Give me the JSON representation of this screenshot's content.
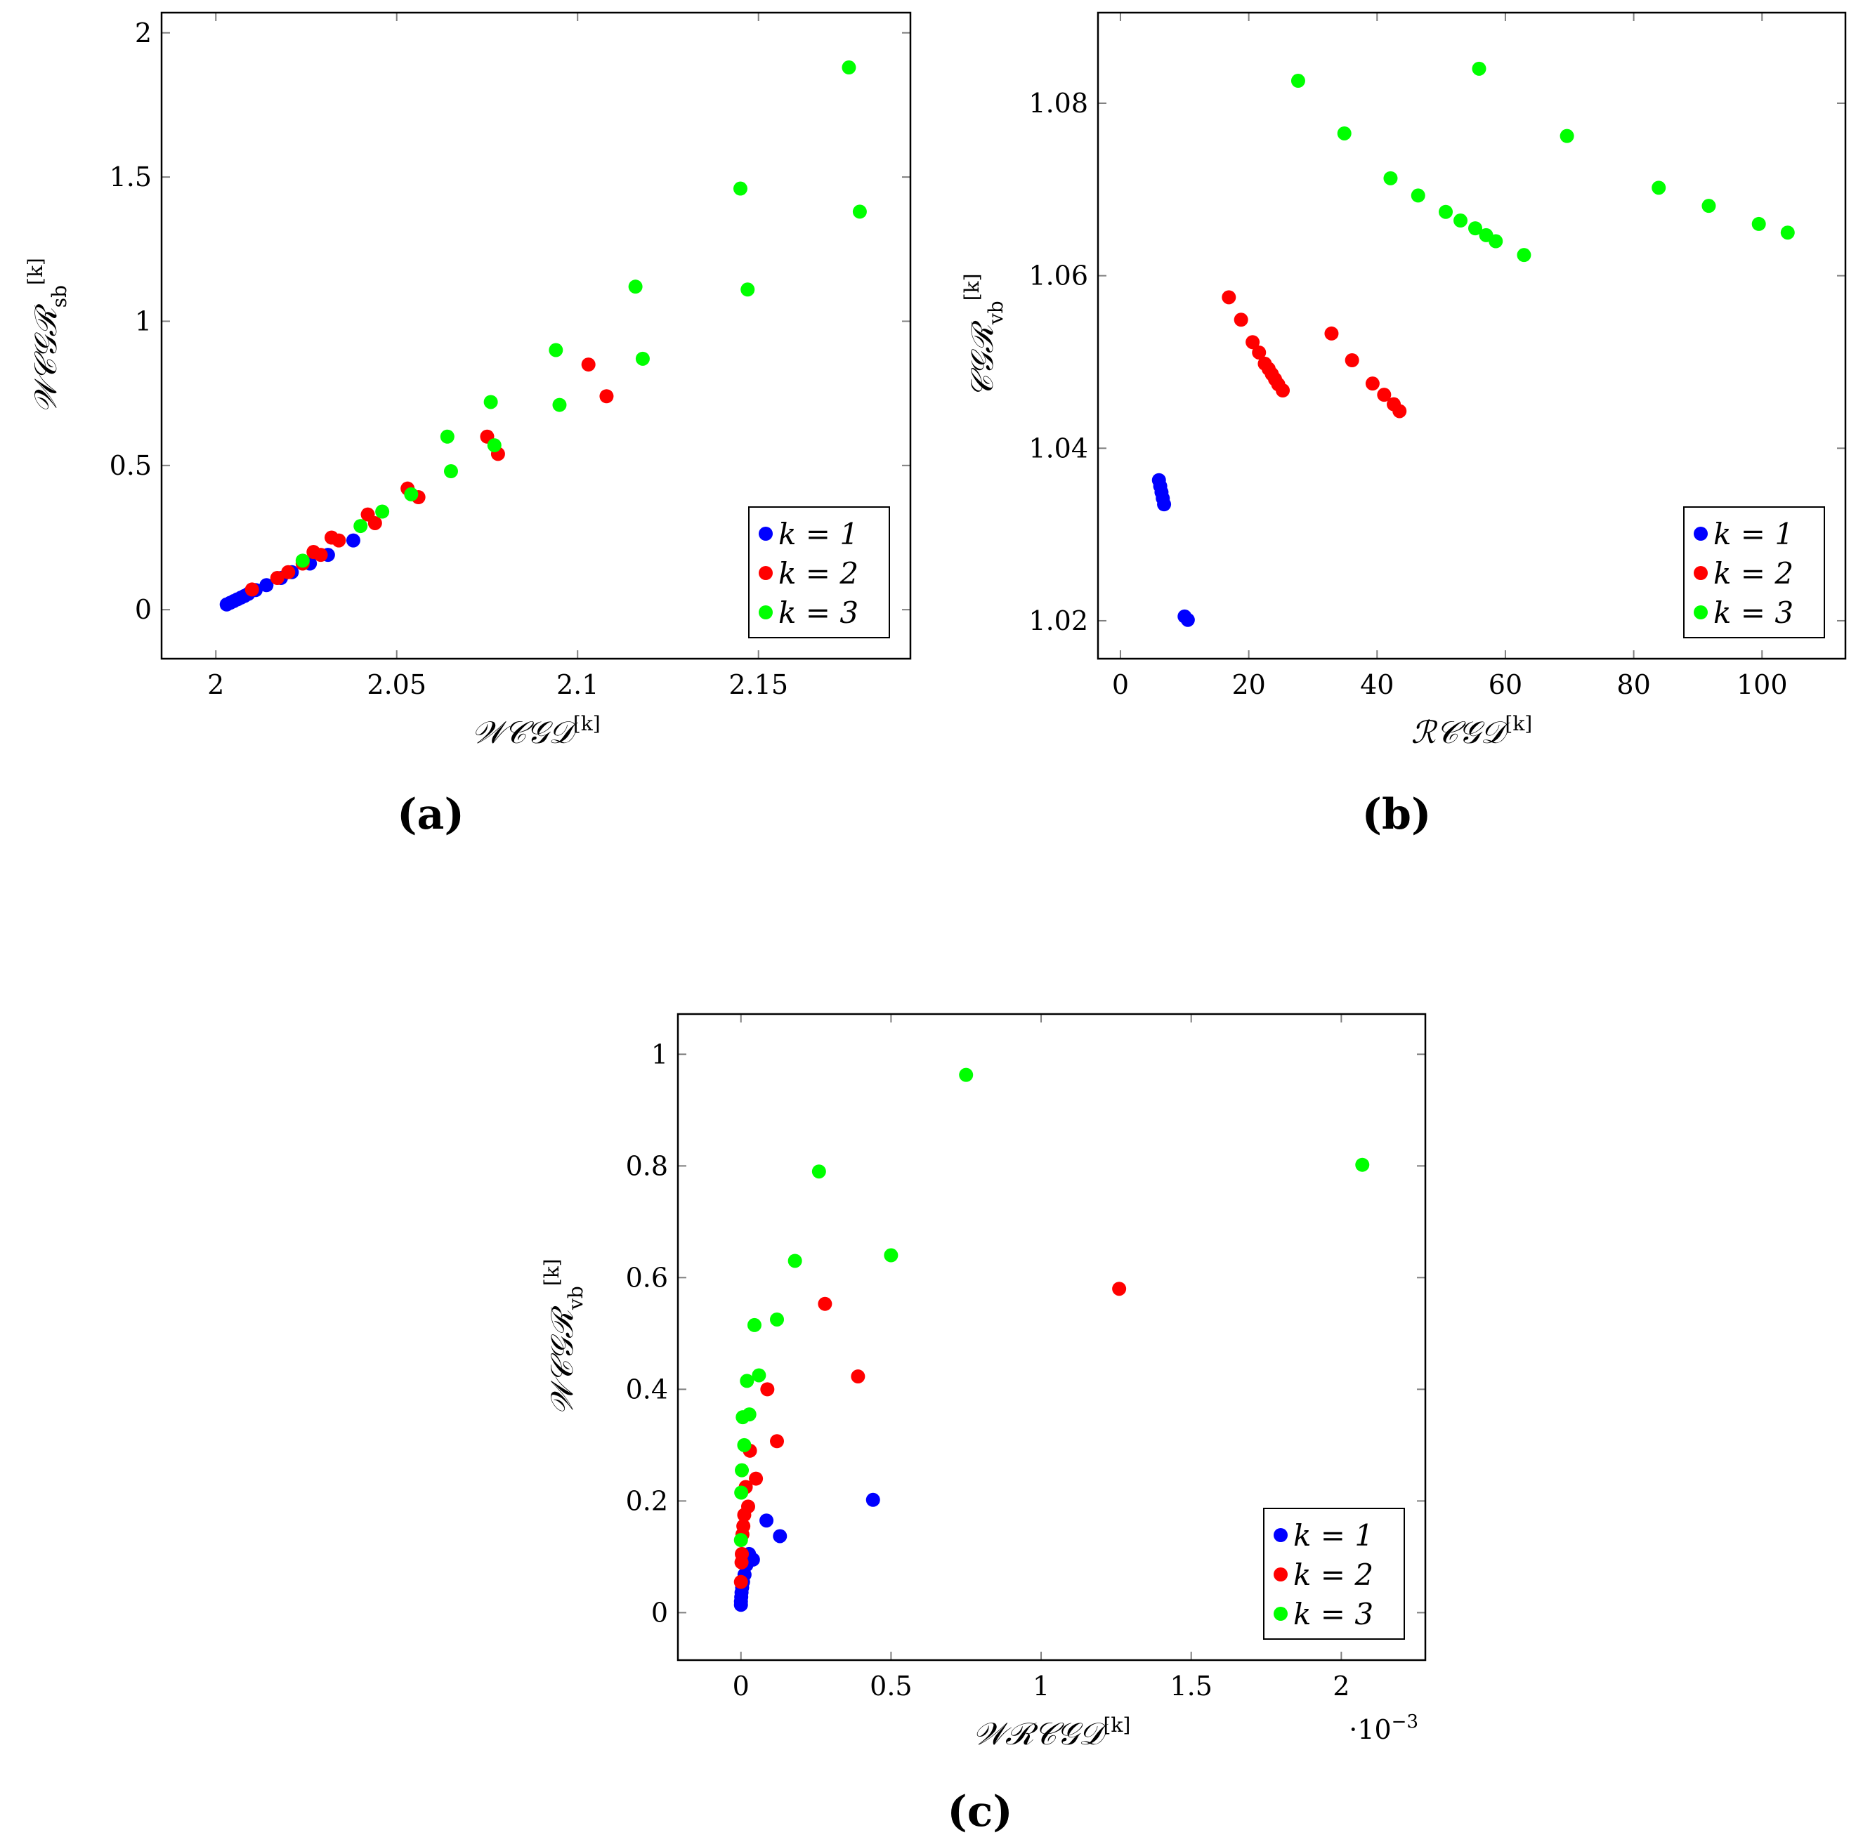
{
  "chart_data": [
    {
      "type": "scatter",
      "panel_label": "(a)",
      "xlabel": "𝒲𝒞𝒢𝒟",
      "xlabel_sup": "[k]",
      "ylabel": "𝒲𝒞𝒢ℛ",
      "ylabel_sub": "sb",
      "ylabel_sup": "[k]",
      "xlim": [
        1.985,
        2.192
      ],
      "ylim": [
        -0.17,
        2.07
      ],
      "xticks": [
        2,
        2.05,
        2.1,
        2.15
      ],
      "xtick_labels": [
        "2",
        "2.05",
        "2.1",
        "2.15"
      ],
      "yticks": [
        0,
        0.5,
        1,
        1.5,
        2
      ],
      "ytick_labels": [
        "0",
        "0.5",
        "1",
        "1.5",
        "2"
      ],
      "legend_position": "bottom-right",
      "series": [
        {
          "name": "k = 1",
          "color": "#0000ff",
          "x": [
            2.003,
            2.004,
            2.005,
            2.006,
            2.007,
            2.008,
            2.009,
            2.011,
            2.014,
            2.018,
            2.021,
            2.026,
            2.031,
            2.038
          ],
          "y": [
            0.018,
            0.024,
            0.03,
            0.036,
            0.042,
            0.048,
            0.055,
            0.068,
            0.085,
            0.11,
            0.13,
            0.16,
            0.19,
            0.24
          ]
        },
        {
          "name": "k = 2",
          "color": "#ff0000",
          "x": [
            2.01,
            2.017,
            2.02,
            2.024,
            2.027,
            2.029,
            2.032,
            2.034,
            2.042,
            2.044,
            2.053,
            2.056,
            2.075,
            2.078,
            2.103,
            2.108
          ],
          "y": [
            0.07,
            0.11,
            0.13,
            0.16,
            0.2,
            0.19,
            0.25,
            0.24,
            0.33,
            0.3,
            0.42,
            0.39,
            0.6,
            0.54,
            0.85,
            0.74
          ]
        },
        {
          "name": "k = 3",
          "color": "#00ff00",
          "x": [
            2.024,
            2.04,
            2.046,
            2.054,
            2.064,
            2.065,
            2.076,
            2.077,
            2.094,
            2.095,
            2.116,
            2.118,
            2.145,
            2.147,
            2.175,
            2.178
          ],
          "y": [
            0.17,
            0.29,
            0.34,
            0.4,
            0.6,
            0.48,
            0.72,
            0.57,
            0.9,
            0.71,
            1.12,
            0.87,
            1.46,
            1.11,
            1.88,
            1.38
          ]
        }
      ]
    },
    {
      "type": "scatter",
      "panel_label": "(b)",
      "xlabel": "ℛ𝒞𝒢𝒟",
      "xlabel_sup": "[k]",
      "ylabel": "𝒞𝒢ℛ",
      "ylabel_sub": "vb",
      "ylabel_sup": "[k]",
      "xlim": [
        -3.5,
        113
      ],
      "ylim": [
        1.0156,
        1.0905
      ],
      "xticks": [
        0,
        20,
        40,
        60,
        80,
        100
      ],
      "xtick_labels": [
        "0",
        "20",
        "40",
        "60",
        "80",
        "100"
      ],
      "yticks": [
        1.02,
        1.04,
        1.06,
        1.08
      ],
      "ytick_labels": [
        "1.02",
        "1.04",
        "1.06",
        "1.08"
      ],
      "legend_position": "bottom-right",
      "series": [
        {
          "name": "k = 1",
          "color": "#0000ff",
          "x": [
            6.0,
            6.2,
            6.4,
            6.6,
            6.8,
            10.0,
            10.5
          ],
          "y": [
            1.0363,
            1.0356,
            1.0349,
            1.0342,
            1.0335,
            1.0205,
            1.0201
          ]
        },
        {
          "name": "k = 2",
          "color": "#ff0000",
          "x": [
            16.9,
            18.8,
            20.6,
            21.6,
            22.5,
            23.1,
            23.6,
            24.1,
            24.6,
            25.3,
            32.9,
            36.1,
            39.3,
            41.1,
            42.6,
            43.5
          ],
          "y": [
            1.0575,
            1.0549,
            1.0523,
            1.0511,
            1.0498,
            1.0492,
            1.0486,
            1.048,
            1.0474,
            1.0467,
            1.0533,
            1.0502,
            1.0475,
            1.0462,
            1.0451,
            1.0443
          ]
        },
        {
          "name": "k = 3",
          "color": "#00ff00",
          "x": [
            27.7,
            34.9,
            55.9,
            42.1,
            46.4,
            50.7,
            53.0,
            55.3,
            57.0,
            58.5,
            62.9,
            69.6,
            83.9,
            91.7,
            99.5,
            104.0
          ],
          "y": [
            1.0826,
            1.0765,
            1.084,
            1.0713,
            1.0693,
            1.0674,
            1.0664,
            1.0655,
            1.0647,
            1.064,
            1.0624,
            1.0762,
            1.0702,
            1.0681,
            1.066,
            1.065
          ]
        }
      ]
    },
    {
      "type": "scatter",
      "panel_label": "(c)",
      "xlabel": "𝒲ℛ𝒞𝒢𝒟",
      "xlabel_sup": "[k]",
      "ylabel": "𝒲𝒞𝒢ℛ",
      "ylabel_sub": "vb",
      "ylabel_sup": "[k]",
      "x_multiplier": "·10",
      "x_multiplier_exp": "−3",
      "xlim": [
        -0.21,
        2.28
      ],
      "ylim": [
        -0.085,
        1.072
      ],
      "xticks": [
        0,
        0.5,
        1,
        1.5,
        2
      ],
      "xtick_labels": [
        "0",
        "0.5",
        "1",
        "1.5",
        "2"
      ],
      "yticks": [
        0,
        0.2,
        0.4,
        0.6,
        0.8,
        1
      ],
      "ytick_labels": [
        "0",
        "0.2",
        "0.4",
        "0.6",
        "0.8",
        "1"
      ],
      "legend_position": "bottom-right",
      "series": [
        {
          "name": "k = 1",
          "color": "#0000ff",
          "x": [
            0.0,
            0.0,
            0.001,
            0.002,
            0.004,
            0.007,
            0.012,
            0.018,
            0.027,
            0.04,
            0.085,
            0.13,
            0.44
          ],
          "y": [
            0.014,
            0.02,
            0.028,
            0.036,
            0.045,
            0.055,
            0.068,
            0.085,
            0.105,
            0.095,
            0.165,
            0.137,
            0.202
          ]
        },
        {
          "name": "k = 2",
          "color": "#ff0000",
          "x": [
            0.0,
            0.002,
            0.003,
            0.005,
            0.008,
            0.011,
            0.016,
            0.024,
            0.03,
            0.05,
            0.088,
            0.12,
            0.28,
            0.39,
            1.26
          ],
          "y": [
            0.055,
            0.09,
            0.105,
            0.14,
            0.155,
            0.175,
            0.225,
            0.19,
            0.29,
            0.24,
            0.4,
            0.307,
            0.553,
            0.423,
            0.58
          ]
        },
        {
          "name": "k = 3",
          "color": "#00ff00",
          "x": [
            0.0,
            0.001,
            0.003,
            0.006,
            0.011,
            0.02,
            0.028,
            0.045,
            0.06,
            0.12,
            0.18,
            0.26,
            0.5,
            0.75,
            2.07
          ],
          "y": [
            0.13,
            0.215,
            0.255,
            0.35,
            0.3,
            0.415,
            0.355,
            0.515,
            0.425,
            0.525,
            0.63,
            0.79,
            0.64,
            0.963,
            0.802
          ]
        }
      ]
    }
  ]
}
